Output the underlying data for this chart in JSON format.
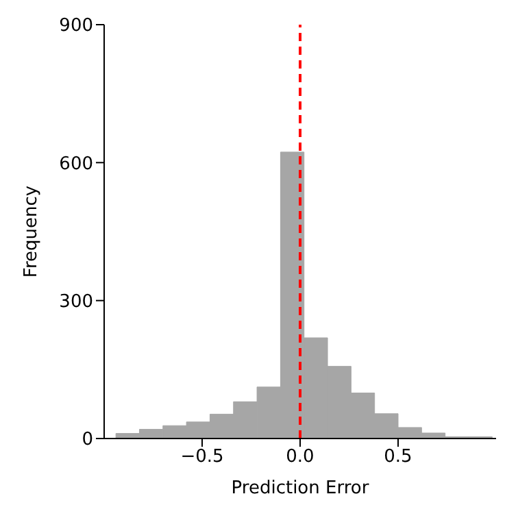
{
  "chart_data": {
    "type": "histogram",
    "xlabel": "Prediction Error",
    "ylabel": "Frequency",
    "bins": [
      -0.94,
      -0.82,
      -0.7,
      -0.58,
      -0.46,
      -0.34,
      -0.22,
      -0.1,
      0.02,
      0.14,
      0.26,
      0.38,
      0.5,
      0.62,
      0.74,
      0.86,
      0.98
    ],
    "values": [
      11,
      20,
      28,
      36,
      53,
      80,
      112,
      623,
      219,
      157,
      99,
      54,
      24,
      12,
      4,
      4
    ],
    "color": "#a6a6a6",
    "xlim": [
      -1.0,
      1.0
    ],
    "xticks": [
      {
        "value": -0.5,
        "label": "−0.5"
      },
      {
        "value": 0,
        "label": "0.0"
      },
      {
        "value": 0.5,
        "label": "0.5"
      }
    ],
    "ylim": [
      0,
      900
    ],
    "yticks": [
      0,
      300,
      600,
      900
    ],
    "ref_lines": [
      {
        "axis": "x",
        "value": 0,
        "color": "#ff0000",
        "line_style": "dashed"
      }
    ]
  }
}
